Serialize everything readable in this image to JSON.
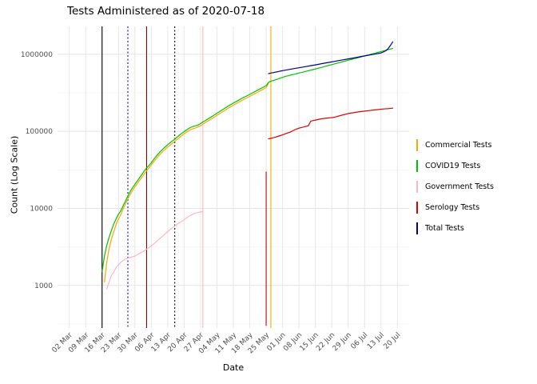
{
  "chart_data": {
    "type": "line",
    "title": "Tests Administered as of 2020-07-18",
    "xlabel": "Date",
    "ylabel": "Count (Log Scale)",
    "x_unit": "days since 2020-03-02",
    "x_range": [
      -5,
      145
    ],
    "y_range": [
      280,
      2300000
    ],
    "y_scale": "log10",
    "x_ticks": [
      {
        "day": 0,
        "label": "02 Mar"
      },
      {
        "day": 7,
        "label": "09 Mar"
      },
      {
        "day": 14,
        "label": "16 Mar"
      },
      {
        "day": 21,
        "label": "23 Mar"
      },
      {
        "day": 28,
        "label": "30 Mar"
      },
      {
        "day": 35,
        "label": "06 Apr"
      },
      {
        "day": 42,
        "label": "13 Apr"
      },
      {
        "day": 49,
        "label": "20 Apr"
      },
      {
        "day": 56,
        "label": "27 Apr"
      },
      {
        "day": 63,
        "label": "04 May"
      },
      {
        "day": 70,
        "label": "11 May"
      },
      {
        "day": 77,
        "label": "18 May"
      },
      {
        "day": 84,
        "label": "25 May"
      },
      {
        "day": 91,
        "label": "01 Jun"
      },
      {
        "day": 98,
        "label": "08 Jun"
      },
      {
        "day": 105,
        "label": "15 Jun"
      },
      {
        "day": 112,
        "label": "22 Jun"
      },
      {
        "day": 119,
        "label": "29 Jun"
      },
      {
        "day": 126,
        "label": "06 Jul"
      },
      {
        "day": 133,
        "label": "13 Jul"
      },
      {
        "day": 140,
        "label": "20 Jul"
      }
    ],
    "y_ticks": [
      {
        "value": 1000,
        "label": "1000"
      },
      {
        "value": 10000,
        "label": "10000"
      },
      {
        "value": 100000,
        "label": "100000"
      },
      {
        "value": 1000000,
        "label": "1000000"
      }
    ],
    "legend": [
      {
        "label": "Commercial Tests",
        "color": "#FFA500"
      },
      {
        "label": "COVID19 Tests",
        "color": "#00C000"
      },
      {
        "label": "Government Tests",
        "color": "#FFB6C1"
      },
      {
        "label": "Serology Tests",
        "color": "#DD0000"
      },
      {
        "label": "Total Tests",
        "color": "#00008B"
      }
    ],
    "vlines": [
      {
        "x": 14,
        "color": "#000000",
        "style": "solid"
      },
      {
        "x": 25,
        "color": "#0000CD",
        "style": "dotted"
      },
      {
        "x": 33,
        "color": "#8B0000",
        "style": "solid"
      },
      {
        "x": 45,
        "color": "#000000",
        "style": "dotted"
      },
      {
        "x": 57,
        "color": "#FFB6C1",
        "style": "solid"
      },
      {
        "x": 84,
        "color": "#CC0000",
        "style": "solid",
        "y0": 300,
        "y1": 30000
      },
      {
        "x": 86,
        "color": "#FFA500",
        "style": "solid"
      }
    ],
    "series": [
      {
        "id": "commercial-tests",
        "label": "Commercial Tests",
        "color": "#FFA500",
        "points": [
          [
            15,
            1100
          ],
          [
            16,
            2000
          ],
          [
            17,
            3000
          ],
          [
            18,
            4000
          ],
          [
            19,
            5000
          ],
          [
            20,
            6200
          ],
          [
            21,
            7300
          ],
          [
            22,
            8300
          ],
          [
            23,
            9800
          ],
          [
            24,
            11500
          ],
          [
            25,
            13300
          ],
          [
            26,
            15200
          ],
          [
            27,
            17000
          ],
          [
            28,
            19000
          ],
          [
            30,
            23000
          ],
          [
            32,
            28000
          ],
          [
            34,
            33500
          ],
          [
            36,
            40000
          ],
          [
            38,
            47500
          ],
          [
            40,
            55000
          ],
          [
            42,
            62500
          ],
          [
            44,
            70000
          ],
          [
            46,
            78500
          ],
          [
            48,
            88000
          ],
          [
            50,
            97500
          ],
          [
            52,
            106000
          ],
          [
            54,
            111000
          ],
          [
            56,
            118000
          ],
          [
            58,
            130000
          ],
          [
            60,
            141000
          ],
          [
            62,
            154000
          ],
          [
            64,
            168000
          ],
          [
            66,
            184000
          ],
          [
            68,
            201000
          ],
          [
            70,
            218000
          ],
          [
            72,
            236000
          ],
          [
            74,
            255000
          ],
          [
            76,
            274000
          ],
          [
            78,
            295000
          ],
          [
            80,
            317000
          ],
          [
            82,
            342000
          ],
          [
            84,
            368000
          ],
          [
            85,
            420000
          ]
        ]
      },
      {
        "id": "government-tests",
        "label": "Government Tests",
        "color": "#FFB6C1",
        "points": [
          [
            16,
            900
          ],
          [
            17,
            1100
          ],
          [
            18,
            1350
          ],
          [
            19,
            1500
          ],
          [
            20,
            1700
          ],
          [
            21,
            1850
          ],
          [
            22,
            2000
          ],
          [
            23,
            2100
          ],
          [
            24,
            2200
          ],
          [
            25,
            2250
          ],
          [
            26,
            2300
          ],
          [
            27,
            2350
          ],
          [
            28,
            2400
          ],
          [
            29,
            2500
          ],
          [
            30,
            2600
          ],
          [
            31,
            2700
          ],
          [
            32,
            2800
          ],
          [
            33,
            2950
          ],
          [
            34,
            3100
          ],
          [
            35,
            3250
          ],
          [
            36,
            3450
          ],
          [
            37,
            3650
          ],
          [
            38,
            3900
          ],
          [
            39,
            4150
          ],
          [
            40,
            4400
          ],
          [
            41,
            4700
          ],
          [
            42,
            5000
          ],
          [
            43,
            5300
          ],
          [
            44,
            5600
          ],
          [
            45,
            5900
          ],
          [
            46,
            6200
          ],
          [
            47,
            6500
          ],
          [
            48,
            6800
          ],
          [
            49,
            7100
          ],
          [
            50,
            7500
          ],
          [
            51,
            7900
          ],
          [
            52,
            8200
          ],
          [
            53,
            8500
          ],
          [
            54,
            8700
          ],
          [
            55,
            8850
          ],
          [
            56,
            9000
          ],
          [
            57,
            9100
          ]
        ]
      },
      {
        "id": "covid19-tests",
        "label": "COVID19 Tests",
        "color": "#00C000",
        "points": [
          [
            14,
            1500
          ],
          [
            15,
            2400
          ],
          [
            16,
            3300
          ],
          [
            17,
            4200
          ],
          [
            18,
            5200
          ],
          [
            19,
            6300
          ],
          [
            20,
            7300
          ],
          [
            21,
            8400
          ],
          [
            22,
            9300
          ],
          [
            23,
            10800
          ],
          [
            24,
            12500
          ],
          [
            25,
            14500
          ],
          [
            26,
            16500
          ],
          [
            27,
            18500
          ],
          [
            28,
            20500
          ],
          [
            29,
            22500
          ],
          [
            30,
            25000
          ],
          [
            31,
            27500
          ],
          [
            32,
            30500
          ],
          [
            33,
            33500
          ],
          [
            34,
            36000
          ],
          [
            35,
            39000
          ],
          [
            36,
            43000
          ],
          [
            37,
            47000
          ],
          [
            38,
            51000
          ],
          [
            39,
            55000
          ],
          [
            40,
            59000
          ],
          [
            41,
            63000
          ],
          [
            42,
            67000
          ],
          [
            43,
            71000
          ],
          [
            44,
            75000
          ],
          [
            45,
            79000
          ],
          [
            46,
            84000
          ],
          [
            47,
            89000
          ],
          [
            48,
            94000
          ],
          [
            49,
            99000
          ],
          [
            50,
            104000
          ],
          [
            51,
            109000
          ],
          [
            52,
            113000
          ],
          [
            53,
            116000
          ],
          [
            54,
            118000
          ],
          [
            55,
            121000
          ],
          [
            56,
            126000
          ],
          [
            57,
            132000
          ],
          [
            58,
            138000
          ],
          [
            60,
            150000
          ],
          [
            62,
            164000
          ],
          [
            64,
            179000
          ],
          [
            66,
            196000
          ],
          [
            68,
            214000
          ],
          [
            70,
            232000
          ],
          [
            72,
            251000
          ],
          [
            74,
            271000
          ],
          [
            76,
            291000
          ],
          [
            78,
            313000
          ],
          [
            80,
            337000
          ],
          [
            82,
            363000
          ],
          [
            84,
            391000
          ],
          [
            85,
            432000
          ],
          [
            86,
            446000
          ],
          [
            88,
            466000
          ],
          [
            90,
            490000
          ],
          [
            92,
            514000
          ],
          [
            94,
            533000
          ],
          [
            96,
            551000
          ],
          [
            98,
            570000
          ],
          [
            100,
            590000
          ],
          [
            102,
            611000
          ],
          [
            104,
            633000
          ],
          [
            106,
            657000
          ],
          [
            108,
            681000
          ],
          [
            110,
            707000
          ],
          [
            112,
            734000
          ],
          [
            114,
            762000
          ],
          [
            116,
            790000
          ],
          [
            118,
            820000
          ],
          [
            120,
            852000
          ],
          [
            122,
            884000
          ],
          [
            124,
            917000
          ],
          [
            126,
            952000
          ],
          [
            128,
            988000
          ],
          [
            130,
            1025000
          ],
          [
            132,
            1064000
          ],
          [
            134,
            1104000
          ],
          [
            136,
            1146000
          ],
          [
            138,
            1190000
          ]
        ]
      },
      {
        "id": "serology-tests",
        "label": "Serology Tests",
        "color": "#DD0000",
        "points": [
          [
            85,
            80000
          ],
          [
            86,
            81000
          ],
          [
            87,
            82500
          ],
          [
            88,
            84000
          ],
          [
            89,
            86000
          ],
          [
            90,
            88000
          ],
          [
            91,
            90000
          ],
          [
            92,
            92000
          ],
          [
            93,
            95000
          ],
          [
            94,
            97000
          ],
          [
            95,
            100000
          ],
          [
            96,
            104000
          ],
          [
            97,
            107000
          ],
          [
            98,
            110000
          ],
          [
            99,
            112000
          ],
          [
            100,
            114000
          ],
          [
            101,
            116000
          ],
          [
            102,
            118000
          ],
          [
            103,
            135000
          ],
          [
            104,
            138000
          ],
          [
            105,
            140000
          ],
          [
            106,
            142000
          ],
          [
            107,
            144000
          ],
          [
            108,
            146000
          ],
          [
            109,
            147500
          ],
          [
            110,
            148500
          ],
          [
            111,
            149500
          ],
          [
            112,
            150500
          ],
          [
            113,
            152000
          ],
          [
            114,
            155000
          ],
          [
            115,
            158000
          ],
          [
            116,
            161000
          ],
          [
            117,
            164000
          ],
          [
            118,
            167000
          ],
          [
            119,
            170000
          ],
          [
            120,
            172000
          ],
          [
            121,
            174000
          ],
          [
            122,
            176000
          ],
          [
            123,
            178000
          ],
          [
            124,
            180000
          ],
          [
            126,
            183000
          ],
          [
            128,
            186000
          ],
          [
            130,
            189000
          ],
          [
            132,
            192000
          ],
          [
            134,
            195000
          ],
          [
            136,
            197000
          ],
          [
            138,
            200000
          ]
        ]
      },
      {
        "id": "total-tests",
        "label": "Total Tests",
        "color": "#00008B",
        "points": [
          [
            85,
            560000
          ],
          [
            86,
            570000
          ],
          [
            87,
            578000
          ],
          [
            88,
            586000
          ],
          [
            89,
            595000
          ],
          [
            90,
            604000
          ],
          [
            91,
            613000
          ],
          [
            93,
            628000
          ],
          [
            95,
            644000
          ],
          [
            97,
            660000
          ],
          [
            99,
            676000
          ],
          [
            101,
            693000
          ],
          [
            103,
            711000
          ],
          [
            105,
            729000
          ],
          [
            107,
            748000
          ],
          [
            109,
            767000
          ],
          [
            111,
            787000
          ],
          [
            113,
            807000
          ],
          [
            115,
            828000
          ],
          [
            117,
            849000
          ],
          [
            119,
            871000
          ],
          [
            121,
            893000
          ],
          [
            123,
            916000
          ],
          [
            125,
            940000
          ],
          [
            127,
            964000
          ],
          [
            129,
            989000
          ],
          [
            131,
            1014000
          ],
          [
            133,
            1040000
          ],
          [
            134,
            1070000
          ],
          [
            135,
            1110000
          ],
          [
            136,
            1180000
          ],
          [
            137,
            1300000
          ],
          [
            138,
            1450000
          ]
        ]
      }
    ]
  }
}
